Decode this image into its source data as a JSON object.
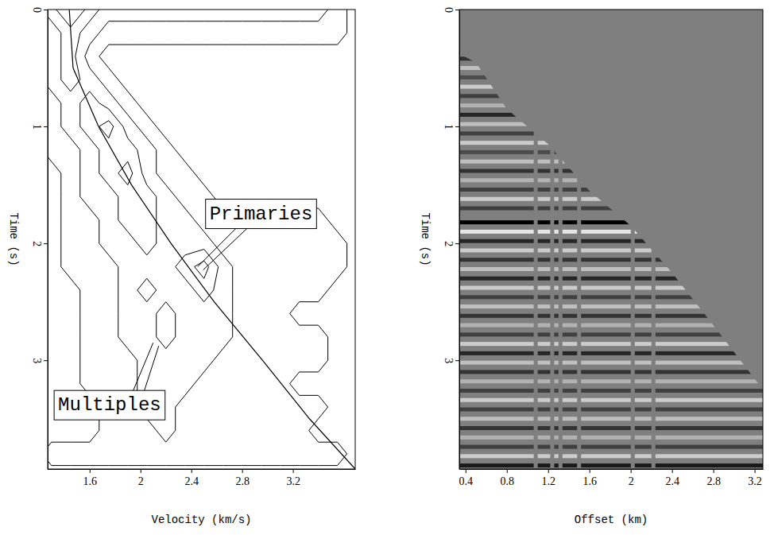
{
  "chart_data": [
    {
      "type": "contour",
      "x_label": "Velocity (km/s)",
      "y_label": "Time (s)",
      "xlim": [
        1.27,
        3.69
      ],
      "ylim": [
        0,
        3.93
      ],
      "xticks": [
        1.6,
        2,
        2.4,
        2.8,
        3.2
      ],
      "yticks": [
        0,
        1,
        2,
        3
      ],
      "velocities": [
        1.3,
        1.45,
        1.6,
        1.75,
        1.9,
        2.05,
        2.2,
        2.35,
        2.5,
        2.65,
        2.8,
        2.95,
        3.1,
        3.25,
        3.4,
        3.55
      ],
      "times": [
        0,
        0.2,
        0.4,
        0.6,
        0.8,
        1.0,
        1.2,
        1.4,
        1.6,
        1.8,
        2.0,
        2.2,
        2.4,
        2.6,
        2.8,
        3.0,
        3.2,
        3.4,
        3.6,
        3.8
      ],
      "semblance": [
        [
          3,
          5,
          3,
          2,
          2,
          2,
          2,
          2,
          2,
          2,
          2,
          2,
          2,
          2,
          2,
          1
        ],
        [
          2,
          3,
          2,
          1,
          1,
          1,
          1,
          1,
          1,
          1,
          1,
          1,
          1,
          1,
          1,
          1
        ],
        [
          2,
          3,
          1,
          0,
          0,
          0,
          0,
          0,
          0,
          0,
          0,
          0,
          0,
          0,
          0,
          0
        ],
        [
          2,
          3,
          2,
          1,
          0,
          0,
          0,
          0,
          0,
          0,
          0,
          0,
          0,
          0,
          0,
          0
        ],
        [
          1,
          2,
          3,
          2,
          1,
          0,
          0,
          0,
          0,
          0,
          0,
          0,
          0,
          0,
          0,
          0
        ],
        [
          1,
          2,
          3,
          4,
          2,
          1,
          0,
          0,
          0,
          0,
          0,
          0,
          0,
          0,
          0,
          0
        ],
        [
          1,
          1,
          2,
          3,
          3,
          2,
          1,
          0,
          0,
          0,
          0,
          0,
          0,
          0,
          0,
          0
        ],
        [
          0,
          1,
          2,
          3,
          4,
          2,
          1,
          1,
          0,
          0,
          0,
          0,
          0,
          0,
          0,
          0
        ],
        [
          0,
          1,
          2,
          2,
          3,
          3,
          2,
          1,
          1,
          0,
          0,
          0,
          0,
          0,
          0,
          0
        ],
        [
          0,
          1,
          1,
          2,
          3,
          3,
          2,
          2,
          1,
          1,
          1,
          1,
          1,
          1,
          1,
          0
        ],
        [
          0,
          1,
          1,
          2,
          2,
          3,
          2,
          2,
          2,
          1,
          1,
          1,
          1,
          1,
          1,
          1
        ],
        [
          0,
          1,
          1,
          1,
          2,
          2,
          2,
          3,
          4,
          2,
          1,
          1,
          1,
          1,
          1,
          1
        ],
        [
          0,
          0,
          1,
          1,
          2,
          3,
          2,
          2,
          3,
          2,
          1,
          1,
          1,
          1,
          1,
          0
        ],
        [
          0,
          0,
          1,
          1,
          2,
          2,
          3,
          2,
          2,
          2,
          1,
          1,
          1,
          0,
          0,
          0
        ],
        [
          0,
          0,
          1,
          1,
          2,
          2,
          3,
          2,
          2,
          2,
          1,
          1,
          1,
          1,
          1,
          0
        ],
        [
          0,
          0,
          1,
          1,
          1,
          2,
          2,
          2,
          2,
          1,
          1,
          1,
          1,
          1,
          1,
          0
        ],
        [
          0,
          0,
          1,
          1,
          1,
          2,
          2,
          2,
          1,
          1,
          1,
          1,
          1,
          0,
          0,
          0
        ],
        [
          0,
          0,
          0,
          1,
          1,
          2,
          2,
          1,
          1,
          1,
          1,
          1,
          1,
          1,
          1,
          0
        ],
        [
          0,
          0,
          0,
          1,
          1,
          1,
          2,
          1,
          1,
          1,
          1,
          1,
          1,
          1,
          0,
          0
        ],
        [
          1,
          1,
          1,
          1,
          1,
          1,
          1,
          1,
          1,
          1,
          1,
          1,
          1,
          1,
          1,
          1
        ]
      ],
      "levels": [
        0.5,
        1.5,
        2.5,
        3.5
      ],
      "line": {
        "x": [
          1.44,
          1.47,
          1.67,
          1.93,
          2.24,
          2.58,
          2.96,
          3.33,
          3.69
        ],
        "y": [
          0,
          0.5,
          1,
          1.5,
          2,
          2.5,
          3,
          3.5,
          3.93
        ]
      },
      "annotations": [
        {
          "text": "Primaries",
          "x": 2.45,
          "y": 2.2
        },
        {
          "text": "Multiples",
          "x": 2.1,
          "y": 2.85
        }
      ]
    },
    {
      "type": "image",
      "x_label": "Offset (km)",
      "y_label": "Time (s)",
      "xlim": [
        0.34,
        3.28
      ],
      "ylim": [
        0,
        3.93
      ],
      "xticks": [
        0.4,
        0.8,
        1.2,
        1.6,
        2,
        2.4,
        2.8,
        3.2
      ],
      "yticks": [
        0,
        1,
        2,
        3
      ],
      "zlim": [
        -1,
        1
      ],
      "reflectors": {
        "time": [
          0.42,
          0.5,
          0.58,
          0.66,
          0.74,
          0.82,
          0.9,
          0.98,
          1.06,
          1.14,
          1.22,
          1.3,
          1.38,
          1.46,
          1.54,
          1.62,
          1.7,
          1.82,
          1.9,
          1.98,
          2.06,
          2.14,
          2.22,
          2.3,
          2.38,
          2.46,
          2.54,
          2.62,
          2.7,
          2.78,
          2.86,
          2.94,
          3.02,
          3.1,
          3.18,
          3.26,
          3.34,
          3.42,
          3.5,
          3.58,
          3.66,
          3.74,
          3.82,
          3.9
        ],
        "amplitude": [
          0.6,
          -0.5,
          0.4,
          -0.6,
          0.5,
          -0.4,
          0.7,
          -0.5,
          0.5,
          -0.6,
          0.4,
          -0.5,
          0.6,
          -0.4,
          0.5,
          -0.6,
          0.5,
          1.0,
          -0.8,
          0.7,
          -0.6,
          0.6,
          -0.5,
          0.7,
          -0.6,
          0.5,
          -0.5,
          0.6,
          -0.4,
          0.5,
          -0.6,
          0.7,
          -0.5,
          0.6,
          -0.4,
          0.5,
          -0.6,
          0.5,
          -0.5,
          0.6,
          -0.4,
          0.5,
          -0.6,
          0.8
        ]
      },
      "mute": {
        "x": [
          0.34,
          0.5,
          0.8,
          1.2,
          1.6,
          2.0,
          2.4,
          2.8,
          3.28
        ],
        "y": [
          0.38,
          0.45,
          0.85,
          1.15,
          1.55,
          1.85,
          2.25,
          2.7,
          3.25
        ]
      },
      "dead_traces": [
        1.08,
        1.24,
        1.32,
        1.5,
        2.02,
        2.22
      ]
    }
  ]
}
